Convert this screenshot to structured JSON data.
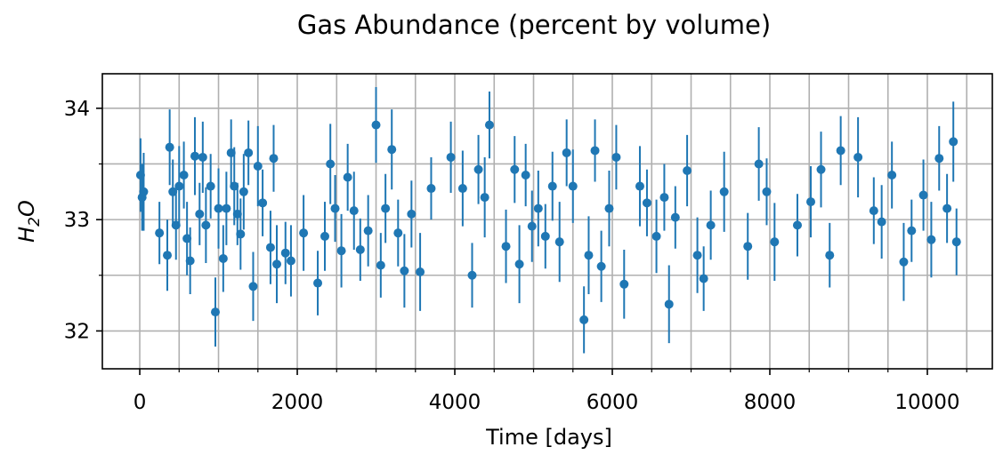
{
  "chart_data": {
    "type": "errorbar",
    "title": "Gas Abundance (percent by volume)",
    "xlabel": "Time [days]",
    "ylabel": [
      "H",
      "2",
      "O"
    ],
    "xlim": [
      -475,
      10825
    ],
    "ylim": [
      31.66,
      34.31
    ],
    "xticks": [
      0,
      2000,
      4000,
      6000,
      8000,
      10000
    ],
    "yticks": [
      32,
      33,
      34
    ],
    "xminorticks": [
      500,
      1000,
      1500,
      2500,
      3000,
      3500,
      4500,
      5000,
      5500,
      6500,
      7000,
      7500,
      8500,
      9000,
      9500,
      10500
    ],
    "yminorticks": [
      32.5,
      33.5
    ],
    "grid": true,
    "color": "#1f77b4",
    "x": [
      10,
      30,
      50,
      250,
      350,
      380,
      420,
      460,
      500,
      560,
      600,
      640,
      700,
      760,
      800,
      840,
      900,
      960,
      1000,
      1060,
      1100,
      1160,
      1200,
      1240,
      1280,
      1320,
      1380,
      1440,
      1500,
      1560,
      1660,
      1700,
      1740,
      1850,
      1920,
      2080,
      2260,
      2350,
      2420,
      2480,
      2560,
      2640,
      2720,
      2800,
      2900,
      3000,
      3060,
      3120,
      3200,
      3280,
      3360,
      3450,
      3560,
      3700,
      3950,
      4100,
      4220,
      4300,
      4380,
      4440,
      4650,
      4760,
      4820,
      4900,
      4980,
      5060,
      5150,
      5240,
      5330,
      5420,
      5500,
      5640,
      5700,
      5780,
      5860,
      5960,
      6050,
      6150,
      6350,
      6440,
      6560,
      6660,
      6720,
      6800,
      6950,
      7080,
      7160,
      7250,
      7420,
      7720,
      7860,
      7960,
      8060,
      8350,
      8520,
      8650,
      8760,
      8900,
      9120,
      9320,
      9420,
      9550,
      9700,
      9800,
      9950,
      10050,
      10150,
      10250,
      10330,
      10370
    ],
    "values": [
      33.4,
      33.2,
      33.25,
      32.88,
      32.68,
      33.65,
      33.25,
      32.95,
      33.3,
      33.4,
      32.83,
      32.63,
      33.57,
      33.05,
      33.56,
      32.95,
      33.3,
      32.17,
      33.1,
      32.65,
      33.1,
      33.6,
      33.3,
      33.05,
      32.87,
      33.25,
      33.6,
      32.4,
      33.48,
      33.15,
      32.75,
      33.55,
      32.6,
      32.7,
      32.63,
      32.88,
      32.43,
      32.85,
      33.5,
      33.1,
      32.72,
      33.38,
      33.08,
      32.73,
      32.9,
      33.85,
      32.59,
      33.1,
      33.63,
      32.88,
      32.54,
      33.05,
      32.53,
      33.28,
      33.56,
      33.28,
      32.5,
      33.45,
      33.2,
      33.85,
      32.76,
      33.45,
      32.6,
      33.4,
      32.94,
      33.1,
      32.85,
      33.3,
      32.8,
      33.6,
      33.3,
      32.1,
      32.68,
      33.62,
      32.58,
      33.1,
      33.56,
      32.42,
      33.3,
      33.15,
      32.85,
      33.2,
      32.24,
      33.02,
      33.44,
      32.68,
      32.47,
      32.95,
      33.25,
      32.76,
      33.5,
      33.25,
      32.8,
      32.95,
      33.16,
      33.45,
      32.68,
      33.62,
      33.56,
      33.08,
      32.98,
      33.4,
      32.62,
      32.9,
      33.22,
      32.82,
      33.55,
      33.1,
      33.7,
      32.8
    ],
    "errors": [
      0.33,
      0.3,
      0.35,
      0.28,
      0.32,
      0.34,
      0.29,
      0.31,
      0.36,
      0.3,
      0.33,
      0.3,
      0.35,
      0.28,
      0.32,
      0.34,
      0.29,
      0.31,
      0.36,
      0.3,
      0.33,
      0.3,
      0.35,
      0.28,
      0.32,
      0.34,
      0.29,
      0.31,
      0.36,
      0.3,
      0.33,
      0.3,
      0.35,
      0.28,
      0.32,
      0.34,
      0.29,
      0.31,
      0.36,
      0.3,
      0.33,
      0.3,
      0.35,
      0.28,
      0.32,
      0.34,
      0.29,
      0.31,
      0.36,
      0.3,
      0.33,
      0.3,
      0.35,
      0.28,
      0.32,
      0.34,
      0.29,
      0.31,
      0.36,
      0.3,
      0.33,
      0.3,
      0.35,
      0.28,
      0.32,
      0.34,
      0.29,
      0.31,
      0.36,
      0.3,
      0.33,
      0.3,
      0.35,
      0.28,
      0.32,
      0.34,
      0.29,
      0.31,
      0.36,
      0.3,
      0.33,
      0.3,
      0.35,
      0.28,
      0.32,
      0.34,
      0.29,
      0.31,
      0.36,
      0.3,
      0.33,
      0.3,
      0.35,
      0.28,
      0.32,
      0.34,
      0.29,
      0.31,
      0.36,
      0.3,
      0.33,
      0.3,
      0.35,
      0.28,
      0.32,
      0.34,
      0.29,
      0.31,
      0.36,
      0.3
    ]
  }
}
